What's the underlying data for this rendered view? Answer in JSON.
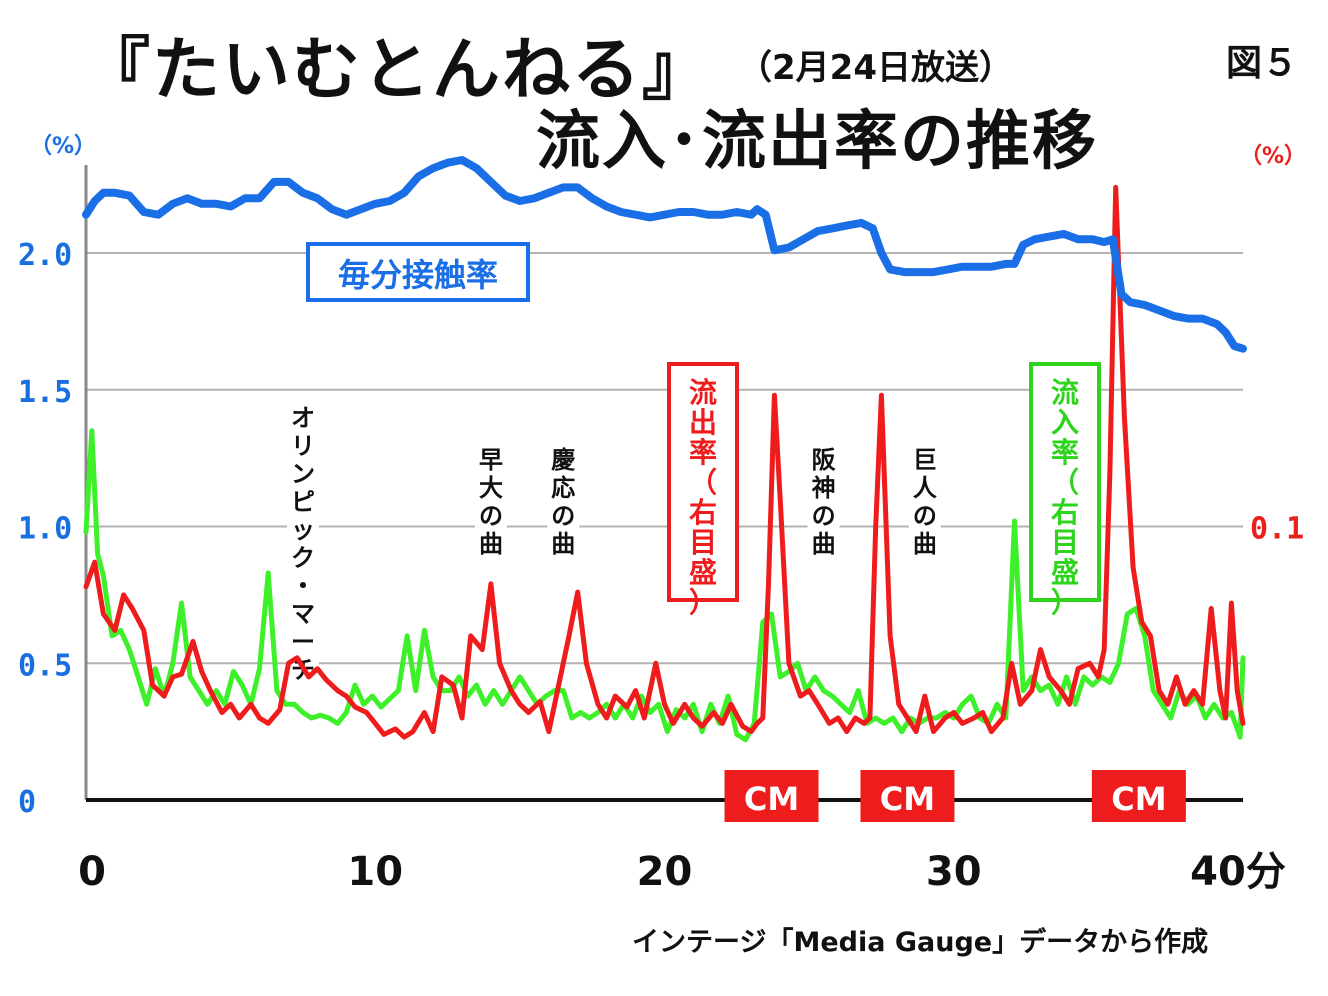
{
  "header": {
    "title": "『たいむとんねる』",
    "date": "（2月24日放送）",
    "subtitle": "流入･流出率の推移",
    "figure_number": "図５"
  },
  "source_note": "インテージ「Media Gauge」データから作成",
  "colors": {
    "share": "#1b6fe6",
    "outflow": "#ee1c1c",
    "inflow": "#3ef02a",
    "grid": "#b3b3b3"
  },
  "chart_data": {
    "type": "line",
    "x_unit": "分",
    "xlim": [
      0,
      40
    ],
    "x_ticks": [
      {
        "value": 0,
        "label": "0"
      },
      {
        "value": 10,
        "label": "10"
      },
      {
        "value": 20,
        "label": "20"
      },
      {
        "value": 30,
        "label": "30"
      },
      {
        "value": 40,
        "label": "40分"
      }
    ],
    "left_axis": {
      "unit": "（%）",
      "ylim": [
        0,
        2.3
      ],
      "ticks": [
        {
          "value": 0,
          "label": "0"
        },
        {
          "value": 0.5,
          "label": "0.5"
        },
        {
          "value": 1.0,
          "label": "1.0"
        },
        {
          "value": 1.5,
          "label": "1.5"
        },
        {
          "value": 2.0,
          "label": "2.0"
        }
      ]
    },
    "right_axis": {
      "unit": "（%）",
      "ylim": [
        0,
        0.23
      ],
      "ticks": [
        {
          "value": 0.1,
          "label": "0.1"
        }
      ]
    },
    "grid": true,
    "series": [
      {
        "name": "毎分接触率",
        "axis": "left",
        "color": "#1b6fe6",
        "x": [
          0,
          0.3,
          0.6,
          1.0,
          1.5,
          2.0,
          2.5,
          3.0,
          3.5,
          4.0,
          4.5,
          5.0,
          5.5,
          6.0,
          6.5,
          7.0,
          7.5,
          8.0,
          8.5,
          9.0,
          9.5,
          10.0,
          10.5,
          11.0,
          11.5,
          12.0,
          12.5,
          13.0,
          13.5,
          14.0,
          14.5,
          15.0,
          15.5,
          16.0,
          16.5,
          17.0,
          17.5,
          18.0,
          18.5,
          19.0,
          19.5,
          20.0,
          20.5,
          21.0,
          21.5,
          22.0,
          22.5,
          23.0,
          23.2,
          23.5,
          23.8,
          24.3,
          24.8,
          25.3,
          25.8,
          26.3,
          26.8,
          27.2,
          27.5,
          27.8,
          28.3,
          28.8,
          29.3,
          29.8,
          30.3,
          30.8,
          31.3,
          31.8,
          32.1,
          32.4,
          32.8,
          33.3,
          33.8,
          34.3,
          34.8,
          35.2,
          35.5,
          35.8,
          36.1,
          36.6,
          37.1,
          37.6,
          38.1,
          38.6,
          39.1,
          39.4,
          39.7,
          40.0
        ],
        "y": [
          2.14,
          2.19,
          2.22,
          2.22,
          2.21,
          2.15,
          2.14,
          2.18,
          2.2,
          2.18,
          2.18,
          2.17,
          2.2,
          2.2,
          2.26,
          2.26,
          2.22,
          2.2,
          2.16,
          2.14,
          2.16,
          2.18,
          2.19,
          2.22,
          2.28,
          2.31,
          2.33,
          2.34,
          2.31,
          2.26,
          2.21,
          2.19,
          2.2,
          2.22,
          2.24,
          2.24,
          2.2,
          2.17,
          2.15,
          2.14,
          2.13,
          2.14,
          2.15,
          2.15,
          2.14,
          2.14,
          2.15,
          2.14,
          2.16,
          2.14,
          2.01,
          2.02,
          2.05,
          2.08,
          2.09,
          2.1,
          2.11,
          2.09,
          2.0,
          1.94,
          1.93,
          1.93,
          1.93,
          1.94,
          1.95,
          1.95,
          1.95,
          1.96,
          1.96,
          2.03,
          2.05,
          2.06,
          2.07,
          2.05,
          2.05,
          2.04,
          2.05,
          1.85,
          1.82,
          1.81,
          1.79,
          1.77,
          1.76,
          1.76,
          1.74,
          1.71,
          1.66,
          1.65
        ]
      },
      {
        "name": "流出率（右目盛）",
        "axis": "right",
        "color": "#ee1c1c",
        "x": [
          0,
          0.3,
          0.6,
          1.0,
          1.3,
          1.6,
          2.0,
          2.3,
          2.7,
          3.0,
          3.3,
          3.7,
          4.0,
          4.3,
          4.7,
          5.0,
          5.3,
          5.7,
          6.0,
          6.3,
          6.7,
          7.0,
          7.3,
          7.7,
          8.0,
          8.3,
          8.7,
          9.0,
          9.3,
          9.7,
          10.0,
          10.3,
          10.7,
          11.0,
          11.3,
          11.7,
          12.0,
          12.3,
          12.7,
          13.0,
          13.3,
          13.7,
          14.0,
          14.3,
          14.7,
          15.0,
          15.3,
          15.7,
          16.0,
          16.3,
          16.7,
          17.0,
          17.3,
          17.7,
          18.0,
          18.3,
          18.7,
          19.0,
          19.3,
          19.7,
          20.0,
          20.3,
          20.7,
          21.0,
          21.3,
          21.7,
          22.0,
          22.3,
          22.7,
          23.0,
          23.2,
          23.4,
          23.6,
          23.8,
          24.0,
          24.3,
          24.7,
          25.0,
          25.3,
          25.7,
          26.0,
          26.3,
          26.6,
          26.9,
          27.1,
          27.3,
          27.5,
          27.8,
          28.1,
          28.4,
          28.7,
          29.0,
          29.3,
          29.7,
          30.0,
          30.3,
          30.7,
          31.0,
          31.3,
          31.7,
          32.0,
          32.3,
          32.7,
          33.0,
          33.3,
          33.7,
          34.0,
          34.3,
          34.7,
          35.0,
          35.2,
          35.4,
          35.6,
          35.9,
          36.2,
          36.5,
          36.8,
          37.1,
          37.4,
          37.7,
          38.0,
          38.3,
          38.6,
          38.9,
          39.2,
          39.4,
          39.6,
          39.8,
          40.0
        ],
        "y": [
          0.078,
          0.087,
          0.068,
          0.062,
          0.075,
          0.07,
          0.062,
          0.042,
          0.038,
          0.045,
          0.046,
          0.058,
          0.047,
          0.04,
          0.032,
          0.035,
          0.03,
          0.035,
          0.03,
          0.028,
          0.033,
          0.05,
          0.052,
          0.045,
          0.048,
          0.044,
          0.04,
          0.038,
          0.034,
          0.032,
          0.028,
          0.024,
          0.026,
          0.023,
          0.025,
          0.032,
          0.025,
          0.045,
          0.042,
          0.03,
          0.06,
          0.055,
          0.079,
          0.05,
          0.04,
          0.035,
          0.032,
          0.036,
          0.025,
          0.04,
          0.06,
          0.076,
          0.05,
          0.035,
          0.03,
          0.038,
          0.034,
          0.04,
          0.03,
          0.05,
          0.035,
          0.028,
          0.035,
          0.03,
          0.027,
          0.032,
          0.028,
          0.035,
          0.027,
          0.025,
          0.028,
          0.03,
          0.08,
          0.148,
          0.11,
          0.05,
          0.038,
          0.04,
          0.035,
          0.028,
          0.03,
          0.025,
          0.03,
          0.028,
          0.03,
          0.1,
          0.148,
          0.06,
          0.035,
          0.03,
          0.025,
          0.038,
          0.025,
          0.03,
          0.032,
          0.028,
          0.03,
          0.032,
          0.025,
          0.03,
          0.05,
          0.035,
          0.04,
          0.055,
          0.045,
          0.04,
          0.035,
          0.048,
          0.05,
          0.045,
          0.055,
          0.12,
          0.224,
          0.14,
          0.085,
          0.065,
          0.06,
          0.04,
          0.035,
          0.045,
          0.035,
          0.04,
          0.035,
          0.07,
          0.04,
          0.03,
          0.072,
          0.04,
          0.028
        ]
      },
      {
        "name": "流入率（右目盛）",
        "axis": "right",
        "color": "#3ef02a",
        "x": [
          0,
          0.2,
          0.4,
          0.6,
          0.9,
          1.2,
          1.5,
          1.8,
          2.1,
          2.4,
          2.7,
          3.0,
          3.3,
          3.6,
          3.9,
          4.2,
          4.5,
          4.8,
          5.1,
          5.4,
          5.7,
          6.0,
          6.3,
          6.6,
          6.9,
          7.2,
          7.5,
          7.8,
          8.1,
          8.4,
          8.7,
          9.0,
          9.3,
          9.6,
          9.9,
          10.2,
          10.5,
          10.8,
          11.1,
          11.4,
          11.7,
          12.0,
          12.3,
          12.6,
          12.9,
          13.2,
          13.5,
          13.8,
          14.1,
          14.4,
          14.7,
          15.0,
          15.3,
          15.6,
          15.9,
          16.2,
          16.5,
          16.8,
          17.1,
          17.4,
          17.7,
          18.0,
          18.3,
          18.6,
          18.9,
          19.2,
          19.5,
          19.8,
          20.1,
          20.4,
          20.7,
          21.0,
          21.3,
          21.6,
          21.9,
          22.2,
          22.5,
          22.8,
          23.1,
          23.4,
          23.7,
          24.0,
          24.3,
          24.6,
          24.9,
          25.2,
          25.5,
          25.8,
          26.1,
          26.4,
          26.7,
          27.0,
          27.3,
          27.6,
          27.9,
          28.2,
          28.5,
          28.8,
          29.1,
          29.4,
          29.7,
          30.0,
          30.3,
          30.6,
          30.9,
          31.2,
          31.5,
          31.8,
          32.1,
          32.4,
          32.7,
          33.0,
          33.3,
          33.6,
          33.9,
          34.2,
          34.5,
          34.8,
          35.1,
          35.4,
          35.7,
          36.0,
          36.3,
          36.6,
          36.9,
          37.2,
          37.5,
          37.8,
          38.1,
          38.4,
          38.7,
          39.0,
          39.3,
          39.6,
          39.9,
          40.0
        ],
        "y": [
          0.098,
          0.135,
          0.09,
          0.082,
          0.06,
          0.062,
          0.055,
          0.045,
          0.035,
          0.048,
          0.038,
          0.05,
          0.072,
          0.045,
          0.04,
          0.035,
          0.04,
          0.035,
          0.047,
          0.042,
          0.035,
          0.048,
          0.083,
          0.04,
          0.035,
          0.035,
          0.032,
          0.03,
          0.031,
          0.03,
          0.028,
          0.032,
          0.042,
          0.035,
          0.038,
          0.034,
          0.037,
          0.04,
          0.06,
          0.04,
          0.062,
          0.045,
          0.04,
          0.04,
          0.045,
          0.038,
          0.042,
          0.035,
          0.04,
          0.035,
          0.04,
          0.045,
          0.04,
          0.035,
          0.038,
          0.04,
          0.04,
          0.03,
          0.032,
          0.03,
          0.032,
          0.035,
          0.03,
          0.035,
          0.03,
          0.038,
          0.032,
          0.035,
          0.025,
          0.033,
          0.03,
          0.035,
          0.025,
          0.035,
          0.028,
          0.038,
          0.024,
          0.022,
          0.028,
          0.065,
          0.068,
          0.045,
          0.047,
          0.05,
          0.04,
          0.045,
          0.04,
          0.038,
          0.035,
          0.032,
          0.04,
          0.028,
          0.03,
          0.028,
          0.03,
          0.025,
          0.03,
          0.028,
          0.03,
          0.03,
          0.032,
          0.03,
          0.035,
          0.038,
          0.03,
          0.028,
          0.035,
          0.03,
          0.102,
          0.04,
          0.045,
          0.04,
          0.042,
          0.035,
          0.045,
          0.035,
          0.045,
          0.042,
          0.045,
          0.043,
          0.05,
          0.068,
          0.07,
          0.06,
          0.04,
          0.035,
          0.03,
          0.04,
          0.035,
          0.038,
          0.03,
          0.035,
          0.03,
          0.032,
          0.023,
          0.052
        ]
      }
    ],
    "labels": {
      "share_label": "毎分接触率",
      "outflow_label": "流出率（右目盛）",
      "inflow_label": "流入率（右目盛）"
    },
    "annotations": [
      {
        "x": 7.5,
        "text": "オリンピック・マーチ"
      },
      {
        "x": 14.0,
        "text": "早大の曲"
      },
      {
        "x": 16.5,
        "text": "慶応の曲"
      },
      {
        "x": 25.5,
        "text": "阪神の曲"
      },
      {
        "x": 29.0,
        "text": "巨人の曲"
      }
    ],
    "cm_markers": [
      {
        "x": 23.7,
        "label": "CM"
      },
      {
        "x": 28.4,
        "label": "CM"
      },
      {
        "x": 36.4,
        "label": "CM"
      }
    ]
  }
}
